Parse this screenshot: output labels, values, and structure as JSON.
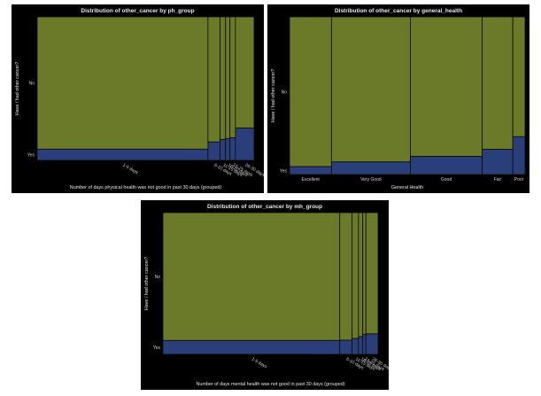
{
  "colors": {
    "no": "#6b7a28",
    "yes": "#2a3f7a",
    "background": "#000000",
    "divider": "#0a0a0a",
    "text": "#e6e6e6"
  },
  "chart_data": [
    {
      "type": "mosaic",
      "title": "Distribution of other_cancer by ph_group",
      "xlabel": "Number of days physical health was not good in past 30 days (grouped)",
      "ylabel": "Have / had other cancer?",
      "y_categories": [
        "No",
        "Yes"
      ],
      "x_tick_rotated": true,
      "categories": [
        "1-5 days",
        "6-10 days",
        "11-15 days",
        "16-20 days",
        "21-25 days",
        "26-30 days"
      ],
      "widths": [
        0.777,
        0.055,
        0.025,
        0.02,
        0.025,
        0.085
      ],
      "yes_share": [
        0.078,
        0.128,
        0.145,
        0.15,
        0.158,
        0.225
      ]
    },
    {
      "type": "mosaic",
      "title": "Distribution of other_cancer by general_health",
      "xlabel": "General Health",
      "ylabel": "Have / had other cancer?",
      "y_categories": [
        "No",
        "Yes"
      ],
      "x_tick_rotated": false,
      "categories": [
        "Excellent",
        "Very Good",
        "Good",
        "Fair",
        "Poor"
      ],
      "widths": [
        0.178,
        0.335,
        0.305,
        0.13,
        0.052
      ],
      "yes_share": [
        0.05,
        0.08,
        0.115,
        0.16,
        0.24
      ]
    },
    {
      "type": "mosaic",
      "title": "Distribution of other_cancer by mh_group",
      "xlabel": "Number of days mental health was not good in past 30 days (grouped)",
      "ylabel": "Have / had other cancer?",
      "y_categories": [
        "No",
        "Yes"
      ],
      "x_tick_rotated": true,
      "categories": [
        "1-5 days",
        "6-10 days",
        "11-15 days",
        "16-20 days",
        "21-25 days",
        "26-30 days"
      ],
      "widths": [
        0.83,
        0.058,
        0.03,
        0.02,
        0.015,
        0.057
      ],
      "yes_share": [
        0.098,
        0.1,
        0.112,
        0.125,
        0.14,
        0.145
      ]
    }
  ]
}
